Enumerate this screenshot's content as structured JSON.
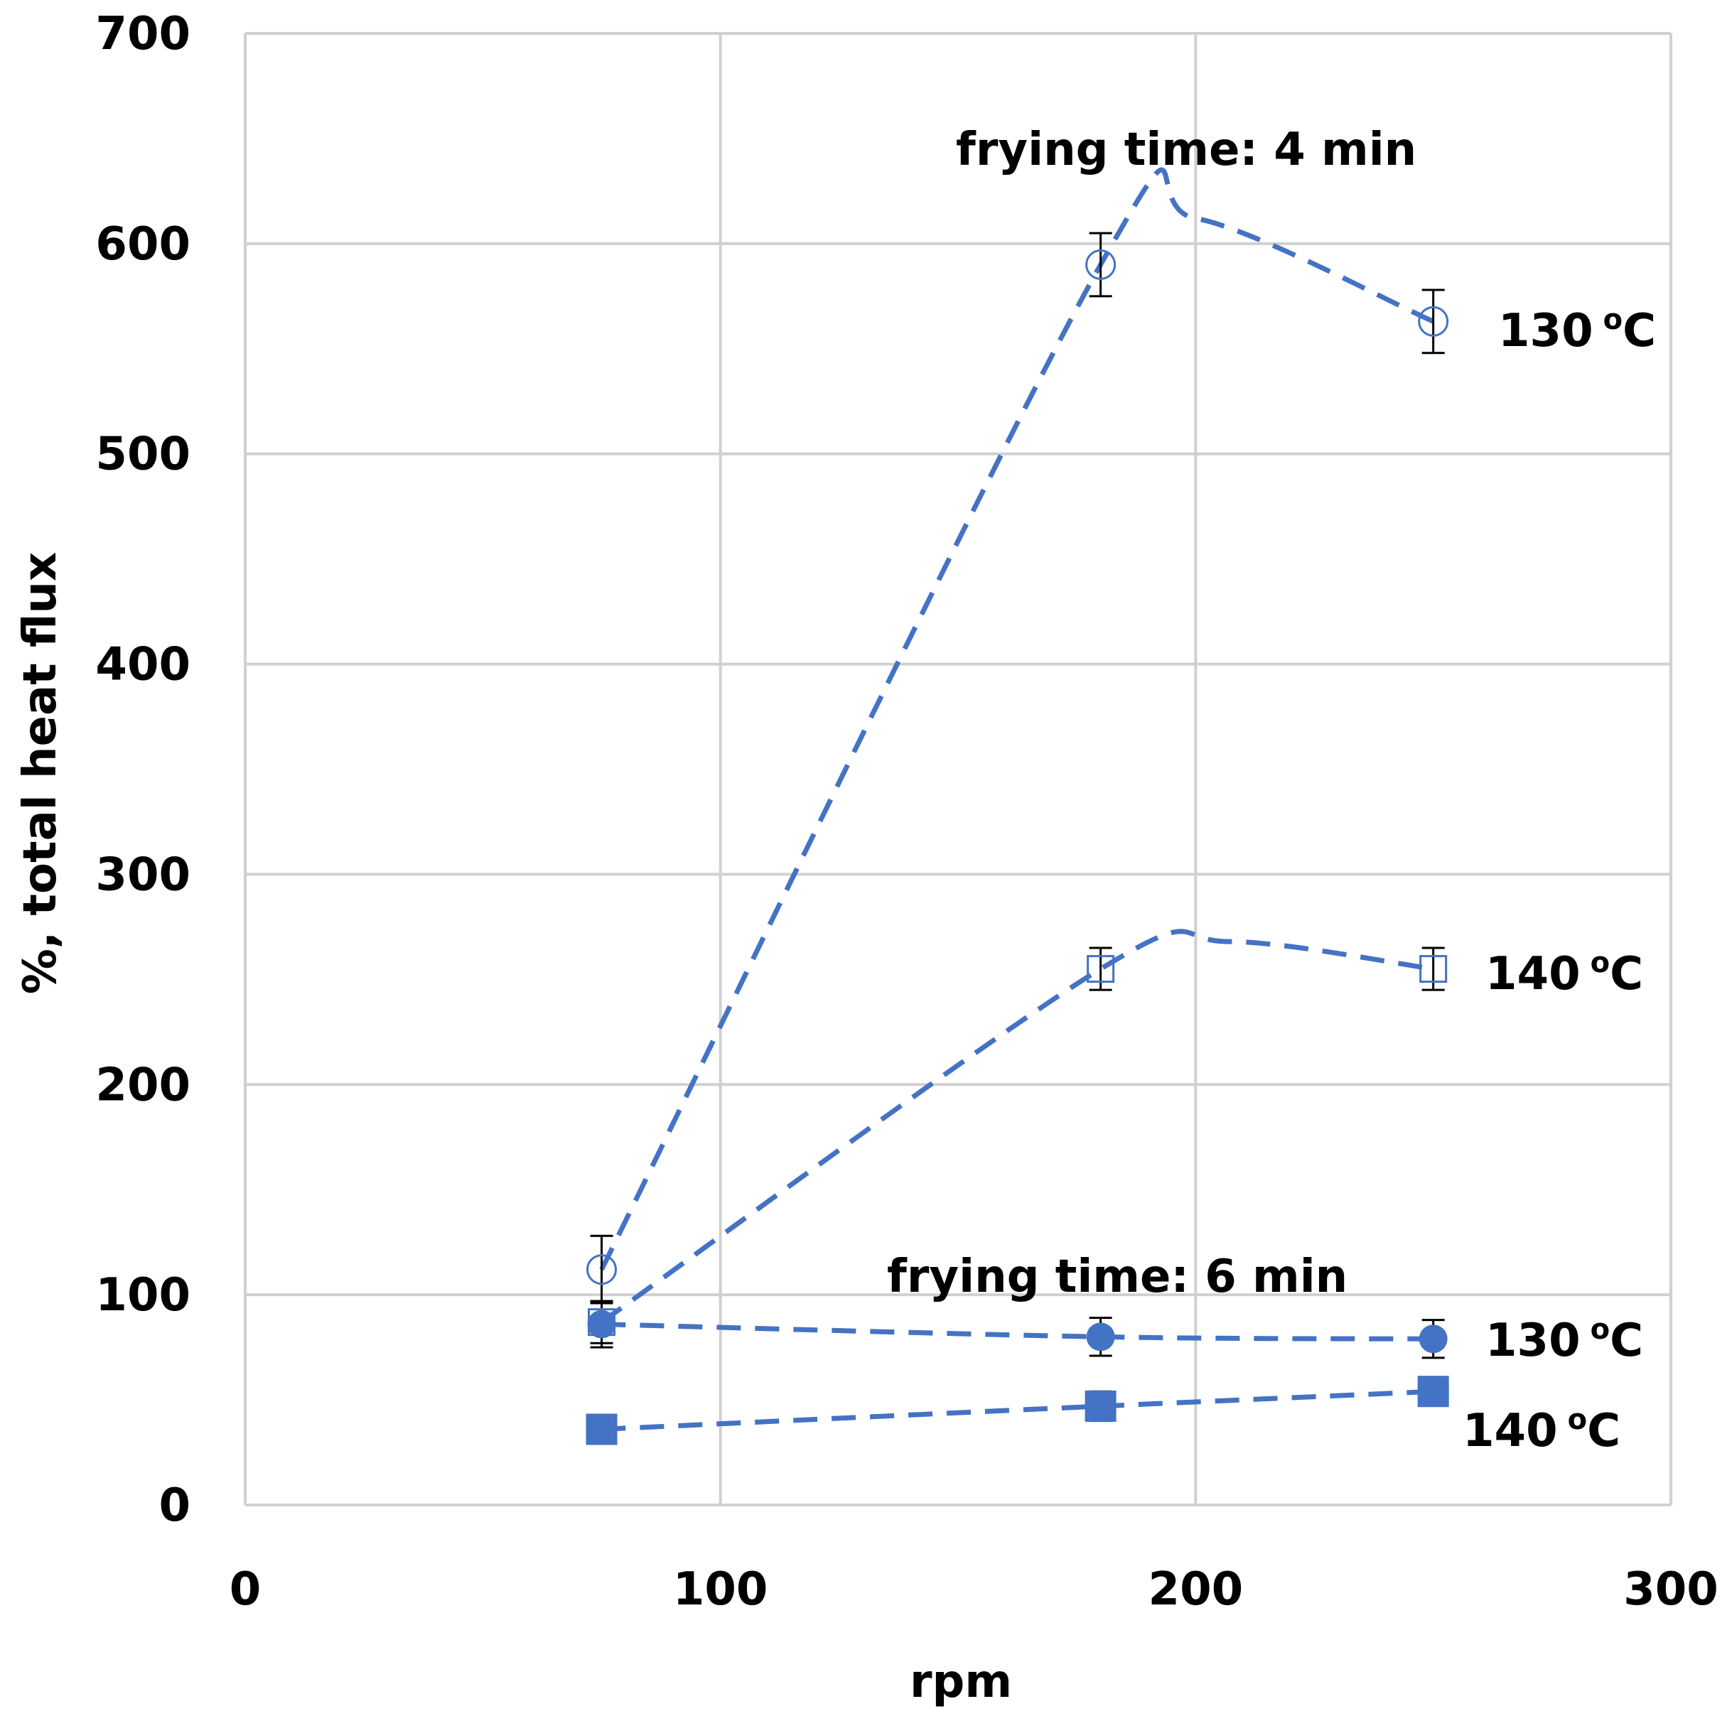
{
  "chart_data": {
    "type": "scatter",
    "title": "",
    "xlabel": "rpm",
    "ylabel": "%, total heat flux",
    "xlim": [
      0,
      300
    ],
    "ylim": [
      0,
      700
    ],
    "x_ticks": [
      0,
      100,
      200,
      300
    ],
    "y_ticks": [
      0,
      100,
      200,
      300,
      400,
      500,
      600,
      700
    ],
    "grid": true,
    "color": "#4472C4",
    "series": [
      {
        "name": "frying time 4 min, 130 oC",
        "marker": "circle-open",
        "x": [
          75,
          180,
          250
        ],
        "y": [
          112,
          590,
          563
        ],
        "err": [
          16,
          15,
          15
        ],
        "curve_peak": {
          "x": 200,
          "y": 612
        }
      },
      {
        "name": "frying time 4 min, 140 oC",
        "marker": "square-open",
        "x": [
          75,
          180,
          250
        ],
        "y": [
          87,
          255,
          255
        ],
        "err": [
          10,
          10,
          10
        ],
        "curve_peak": {
          "x": 207,
          "y": 268
        }
      },
      {
        "name": "frying time 6 min, 130 oC",
        "marker": "circle-filled",
        "x": [
          75,
          180,
          250
        ],
        "y": [
          86,
          80,
          79
        ],
        "err": [
          11,
          9,
          9
        ]
      },
      {
        "name": "frying time 6 min, 140 oC",
        "marker": "square-filled",
        "x": [
          75,
          180,
          250
        ],
        "y": [
          36,
          47,
          54
        ],
        "err": [
          5,
          7,
          5
        ]
      }
    ],
    "annotations": {
      "time_4": "frying time: 4 min",
      "time_6": "frying time: 6 min",
      "label_130_main": "130",
      "label_140_main": "140",
      "degree": "o",
      "unit": "C"
    }
  }
}
